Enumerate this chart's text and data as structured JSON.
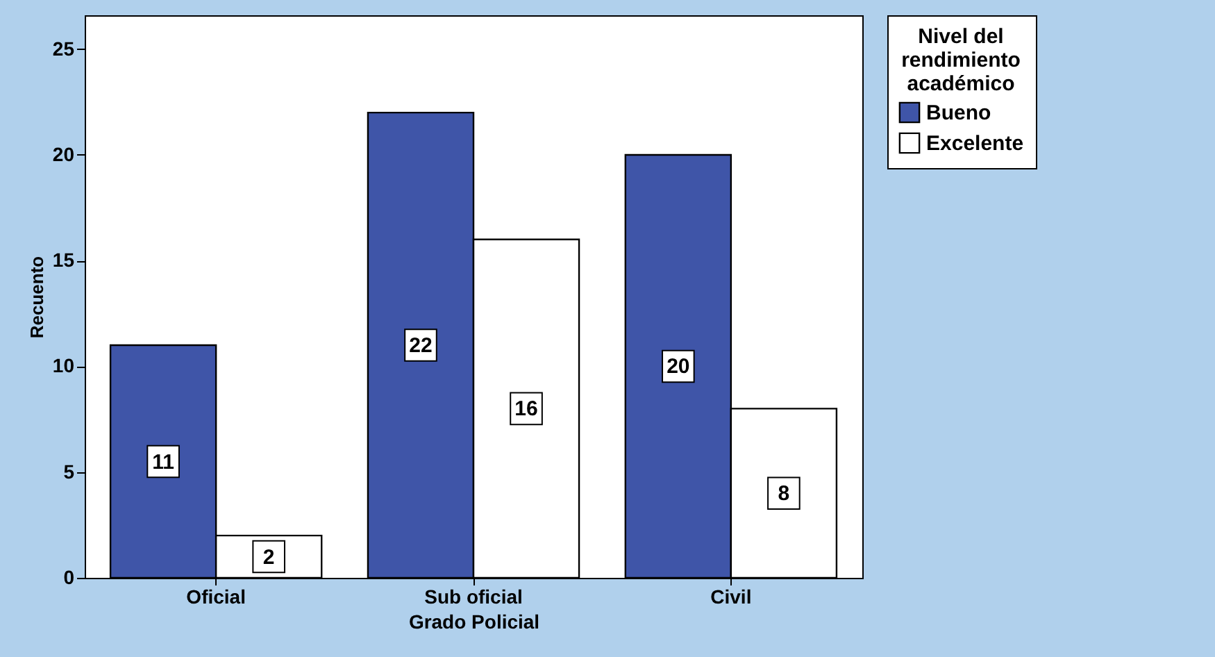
{
  "chart_data": {
    "type": "bar",
    "xlabel": "Grado Policial",
    "ylabel": "Recuento",
    "legend_title": "Nivel del\nrendimiento\nacadémico",
    "categories": [
      "Oficial",
      "Sub oficial",
      "Civil"
    ],
    "series": [
      {
        "name": "Bueno",
        "color": "#3f55a8",
        "values": [
          11,
          22,
          20
        ]
      },
      {
        "name": "Excelente",
        "color": "#ffffff",
        "values": [
          2,
          16,
          8
        ]
      }
    ],
    "ylim": [
      0,
      26.6
    ],
    "yticks": [
      0,
      5,
      10,
      15,
      20,
      25
    ],
    "grid": false,
    "legend": "right",
    "data_labels": true
  }
}
